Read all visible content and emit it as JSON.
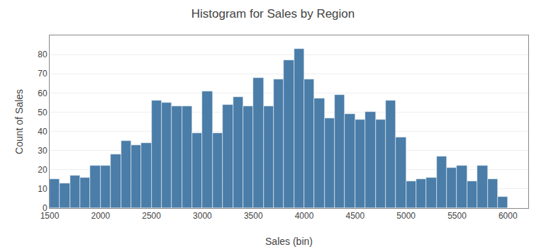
{
  "chart_data": {
    "type": "histogram",
    "title": "Histogram for Sales by Region",
    "x_label": "Sales (bin)",
    "y_label": "Count of Sales",
    "bins": [
      1500,
      1600,
      1700,
      1800,
      1900,
      2000,
      2100,
      2200,
      2300,
      2400,
      2500,
      2600,
      2700,
      2800,
      2900,
      3000,
      3100,
      3200,
      3300,
      3400,
      3500,
      3600,
      3700,
      3800,
      3900,
      4000,
      4100,
      4200,
      4300,
      4400,
      4500,
      4600,
      4700,
      4800,
      4900,
      5000,
      5100,
      5200,
      5300,
      5400,
      5500,
      5600,
      5700,
      5800,
      5900,
      6000,
      6100
    ],
    "values": [
      15,
      13,
      17,
      16,
      22,
      22,
      28,
      35,
      33,
      34,
      56,
      55,
      53,
      53,
      39,
      61,
      39,
      54,
      58,
      53,
      68,
      53,
      67,
      77,
      83,
      67,
      57,
      47,
      59,
      49,
      46,
      50,
      46,
      56,
      37,
      14,
      15,
      16,
      27,
      21,
      22,
      14,
      22,
      15,
      6,
      0
    ],
    "color": "#4a7da8",
    "xlim": [
      1500,
      6200
    ],
    "xticks": [
      1500,
      2000,
      2500,
      3000,
      3500,
      4000,
      4500,
      5000,
      5500,
      6000
    ],
    "ylim": [
      0,
      90
    ],
    "yticks": [
      0,
      10,
      20,
      30,
      40,
      50,
      60,
      70,
      80
    ],
    "grid": true
  }
}
